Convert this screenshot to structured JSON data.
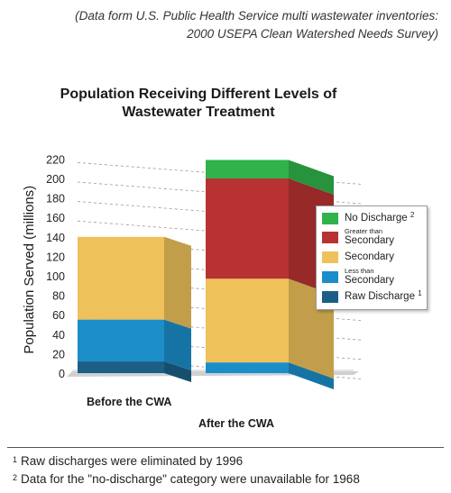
{
  "source_note": {
    "line1": "(Data form U.S. Public Health Service multi wastewater inventories:",
    "line2": "2000 USEPA Clean Watershed Needs Survey)"
  },
  "chart_data": {
    "type": "bar",
    "stacked": true,
    "three_d": true,
    "title": "Population Receiving Different Levels of Wastewater Treatment",
    "title_line1": "Population Receiving Different Levels of",
    "title_line2": "Wastewater Treatment",
    "xlabel": "",
    "ylabel": "Population Served (millions)",
    "ylim": [
      0,
      220
    ],
    "yticks": [
      "0",
      "20",
      "40",
      "60",
      "80",
      "100",
      "120",
      "140",
      "160",
      "180",
      "200",
      "220"
    ],
    "grid": "dashed",
    "categories": [
      "Before the CWA",
      "After the CWA"
    ],
    "series": [
      {
        "name": "Raw Discharge",
        "values": [
          12,
          0
        ],
        "color": "#1b5f86"
      },
      {
        "name": "Less than Secondary",
        "values": [
          43,
          11
        ],
        "color": "#1b8ec9"
      },
      {
        "name": "Secondary",
        "values": [
          85,
          86
        ],
        "color": "#eec15a"
      },
      {
        "name": "Greater than Secondary",
        "values": [
          0,
          103
        ],
        "color": "#b83232"
      },
      {
        "name": "No Discharge",
        "values": [
          0,
          19
        ],
        "color": "#2fb34a"
      }
    ],
    "legend_position": "right"
  },
  "legend": {
    "items": [
      {
        "label": "No Discharge",
        "sup": "2",
        "small": "",
        "color": "#2fb34a"
      },
      {
        "label": "Secondary",
        "sup": "",
        "small": "Greater than",
        "color": "#b83232"
      },
      {
        "label": "Secondary",
        "sup": "",
        "small": "",
        "color": "#eec15a"
      },
      {
        "label": "Secondary",
        "sup": "",
        "small": "Less than",
        "color": "#1b8ec9"
      },
      {
        "label": "Raw Discharge",
        "sup": "1",
        "small": "",
        "color": "#1b5f86"
      }
    ]
  },
  "footnotes": [
    {
      "num": "1",
      "text": "Raw discharges were eliminated by 1996"
    },
    {
      "num": "2",
      "text": "Data for the \"no-discharge\" category were unavailable for 1968"
    }
  ]
}
